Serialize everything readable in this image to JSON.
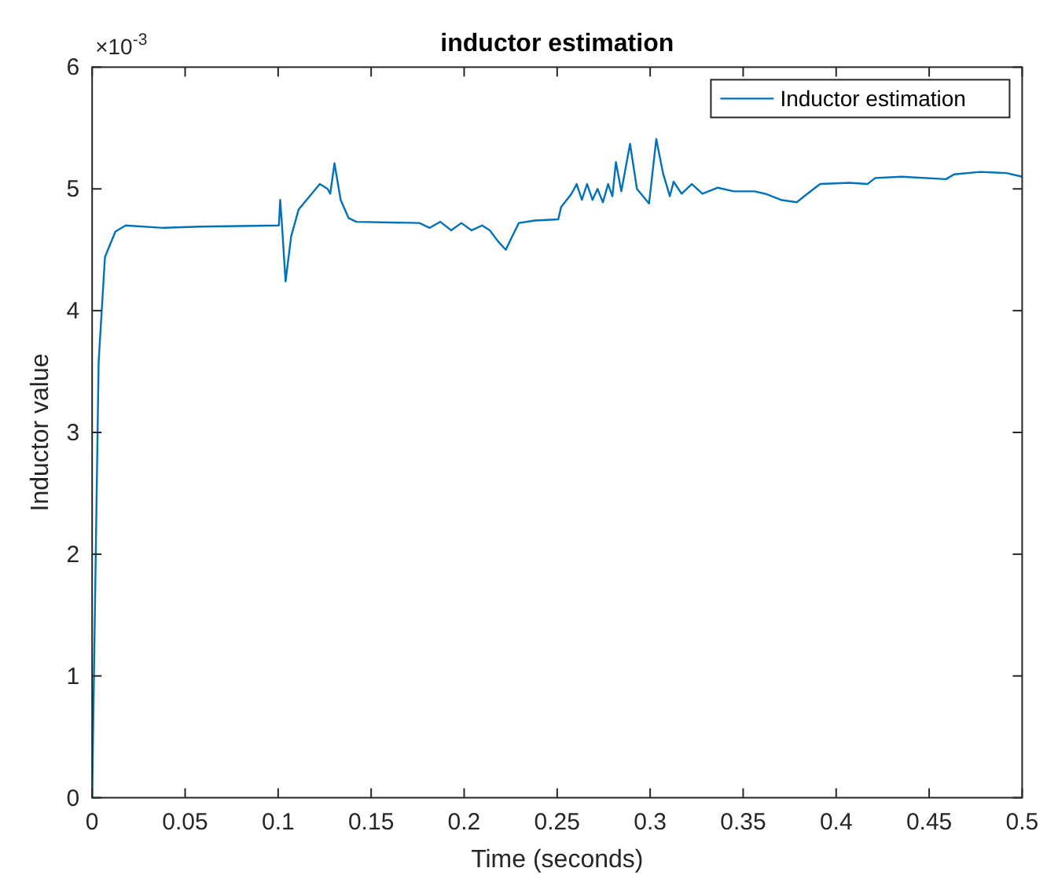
{
  "chart_data": {
    "type": "line",
    "title": "inductor estimation",
    "xlabel": "Time (seconds)",
    "ylabel": "Inductor value",
    "annotations": [
      "×10$^{-3}$"
    ],
    "xlim": [
      0,
      0.5
    ],
    "xticks": [
      0,
      0.05,
      0.1,
      0.15,
      0.2,
      0.25,
      0.3,
      0.35,
      0.4,
      0.45,
      0.5
    ],
    "ylim": [
      0,
      6
    ],
    "yticks": [
      0,
      1,
      2,
      3,
      4,
      5,
      6
    ],
    "grid": false,
    "legend": "top right",
    "series": [
      {
        "name": "Inductor estimation",
        "color": "#0072bd",
        "x": [
          0,
          0.0035,
          0.0069,
          0.0125,
          0.018,
          0.0383,
          0.058,
          0.1004,
          0.1011,
          0.102,
          0.104,
          0.107,
          0.111,
          0.1153,
          0.1224,
          0.1266,
          0.128,
          0.1303,
          0.1336,
          0.1379,
          0.1421,
          0.1759,
          0.1815,
          0.1872,
          0.193,
          0.1985,
          0.204,
          0.2097,
          0.2138,
          0.2182,
          0.2224,
          0.2252,
          0.2294,
          0.2379,
          0.2506,
          0.2521,
          0.2577,
          0.2605,
          0.2633,
          0.2661,
          0.269,
          0.2717,
          0.2746,
          0.2774,
          0.2797,
          0.2816,
          0.2845,
          0.2892,
          0.2929,
          0.2994,
          0.3033,
          0.3069,
          0.3106,
          0.3126,
          0.3169,
          0.3224,
          0.3281,
          0.3364,
          0.345,
          0.3562,
          0.3619,
          0.3703,
          0.3788,
          0.3845,
          0.3914,
          0.4071,
          0.4168,
          0.421,
          0.4352,
          0.4591,
          0.4634,
          0.4775,
          0.4916,
          0.5
        ],
        "values": [
          0,
          3.58,
          4.44,
          4.65,
          4.7,
          4.68,
          4.69,
          4.7,
          4.91,
          4.72,
          4.24,
          4.61,
          4.83,
          4.91,
          5.04,
          5.0,
          4.96,
          5.21,
          4.91,
          4.76,
          4.73,
          4.72,
          4.68,
          4.73,
          4.66,
          4.72,
          4.66,
          4.7,
          4.66,
          4.57,
          4.5,
          4.59,
          4.72,
          4.74,
          4.75,
          4.85,
          4.96,
          5.04,
          4.91,
          5.04,
          4.91,
          5.0,
          4.89,
          5.04,
          4.94,
          5.22,
          4.98,
          5.37,
          5.0,
          4.88,
          5.41,
          5.13,
          4.94,
          5.06,
          4.96,
          5.04,
          4.96,
          5.01,
          4.98,
          4.98,
          4.96,
          4.91,
          4.89,
          4.96,
          5.04,
          5.05,
          5.04,
          5.09,
          5.1,
          5.08,
          5.12,
          5.14,
          5.13,
          5.1
        ]
      }
    ]
  }
}
